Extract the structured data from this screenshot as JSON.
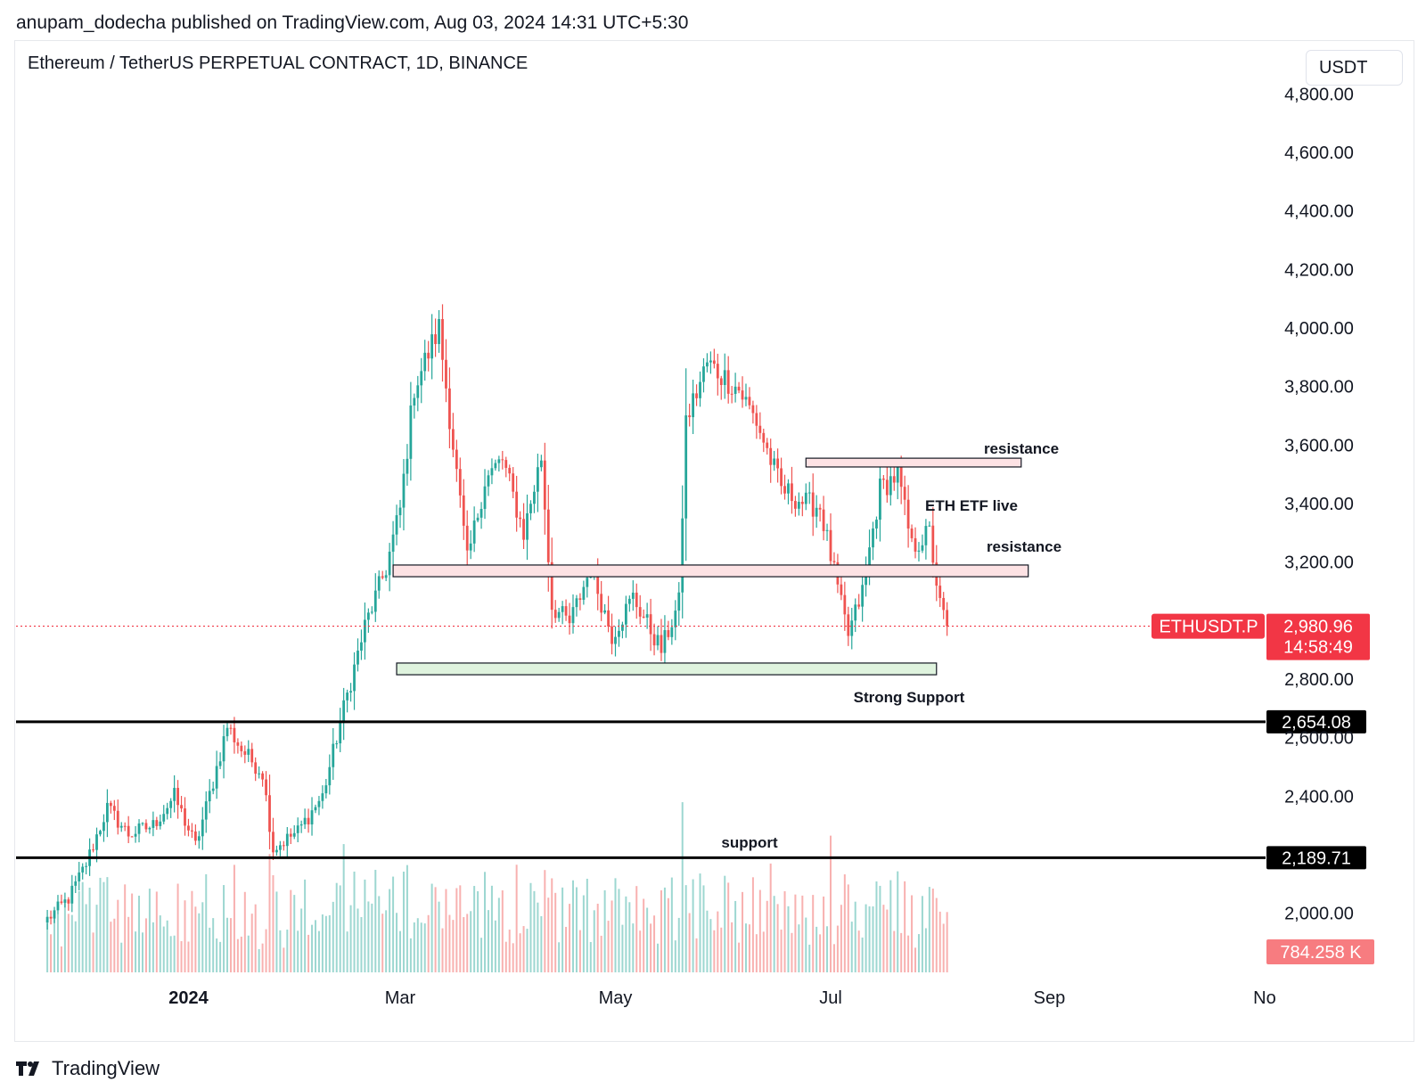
{
  "header": {
    "published": "anupam_dodecha published on TradingView.com, Aug 03, 2024 14:31 UTC+5:30",
    "symbol_title": "Ethereum / TetherUS PERPETUAL CONTRACT, 1D, BINANCE",
    "currency": "USDT"
  },
  "footer": {
    "brand": "TradingView"
  },
  "colors": {
    "up": "#26a69a",
    "down": "#ef5350",
    "price_tag": "#f23645",
    "support_line": "#000000",
    "resistance_fill": "#fde2e4",
    "support_fill": "#dff3de"
  },
  "chart_data": {
    "type": "candlestick",
    "title": "Ethereum / TetherUS PERPETUAL CONTRACT, 1D, BINANCE",
    "x_ticks": [
      "2024",
      "Mar",
      "May",
      "Jul",
      "Sep",
      "No"
    ],
    "y_ticks": [
      "4,800.00",
      "4,600.00",
      "4,400.00",
      "4,200.00",
      "4,000.00",
      "3,800.00",
      "3,600.00",
      "3,400.00",
      "3,200.00",
      "2,800.00",
      "2,600.00",
      "2,400.00",
      "2,000.00"
    ],
    "ylim": [
      1900,
      4830
    ],
    "last_price": {
      "label": "ETHUSDT.P",
      "value": "2,980.96",
      "countdown": "14:58:49",
      "price": 2980.96
    },
    "horizontal_lines": [
      {
        "value": 2654.08,
        "label": "2,654.08"
      },
      {
        "value": 2189.71,
        "label": "2,189.71"
      }
    ],
    "volume_label": "784.258 K",
    "zones": [
      {
        "kind": "resistance",
        "low": 3525,
        "high": 3555,
        "from": "2024-06-24",
        "to": "2024-08-24"
      },
      {
        "kind": "resistance",
        "low": 3150,
        "high": 3190,
        "from": "2024-02-28",
        "to": "2024-08-26"
      },
      {
        "kind": "support",
        "low": 2815,
        "high": 2855,
        "from": "2024-02-29",
        "to": "2024-07-31"
      }
    ],
    "annotations": {
      "resistance_upper": "resistance",
      "eth_etf": "ETH ETF live",
      "resistance_lower": "resistance",
      "strong_support": "Strong Support",
      "support": "support"
    },
    "keypoints": [
      {
        "date": "2023-11-22",
        "price": 1980
      },
      {
        "date": "2023-11-28",
        "price": 2050
      },
      {
        "date": "2023-12-03",
        "price": 2170
      },
      {
        "date": "2023-12-09",
        "price": 2360
      },
      {
        "date": "2023-12-15",
        "price": 2270
      },
      {
        "date": "2023-12-22",
        "price": 2300
      },
      {
        "date": "2023-12-28",
        "price": 2400
      },
      {
        "date": "2024-01-03",
        "price": 2230
      },
      {
        "date": "2024-01-08",
        "price": 2450
      },
      {
        "date": "2024-01-12",
        "price": 2640
      },
      {
        "date": "2024-01-16",
        "price": 2560
      },
      {
        "date": "2024-01-22",
        "price": 2480
      },
      {
        "date": "2024-01-25",
        "price": 2220
      },
      {
        "date": "2024-02-01",
        "price": 2280
      },
      {
        "date": "2024-02-08",
        "price": 2400
      },
      {
        "date": "2024-02-14",
        "price": 2700
      },
      {
        "date": "2024-02-20",
        "price": 2980
      },
      {
        "date": "2024-02-26",
        "price": 3180
      },
      {
        "date": "2024-03-01",
        "price": 3380
      },
      {
        "date": "2024-03-05",
        "price": 3800
      },
      {
        "date": "2024-03-12",
        "price": 4000
      },
      {
        "date": "2024-03-16",
        "price": 3600
      },
      {
        "date": "2024-03-20",
        "price": 3200
      },
      {
        "date": "2024-03-25",
        "price": 3480
      },
      {
        "date": "2024-03-30",
        "price": 3550
      },
      {
        "date": "2024-04-05",
        "price": 3300
      },
      {
        "date": "2024-04-10",
        "price": 3560
      },
      {
        "date": "2024-04-13",
        "price": 3050
      },
      {
        "date": "2024-04-18",
        "price": 2990
      },
      {
        "date": "2024-04-24",
        "price": 3180
      },
      {
        "date": "2024-04-30",
        "price": 2950
      },
      {
        "date": "2024-05-06",
        "price": 3080
      },
      {
        "date": "2024-05-14",
        "price": 2900
      },
      {
        "date": "2024-05-19",
        "price": 3060
      },
      {
        "date": "2024-05-21",
        "price": 3680
      },
      {
        "date": "2024-05-27",
        "price": 3880
      },
      {
        "date": "2024-06-05",
        "price": 3790
      },
      {
        "date": "2024-06-10",
        "price": 3680
      },
      {
        "date": "2024-06-17",
        "price": 3450
      },
      {
        "date": "2024-06-24",
        "price": 3400
      },
      {
        "date": "2024-06-28",
        "price": 3390
      },
      {
        "date": "2024-07-04",
        "price": 3050
      },
      {
        "date": "2024-07-06",
        "price": 2950
      },
      {
        "date": "2024-07-10",
        "price": 3100
      },
      {
        "date": "2024-07-15",
        "price": 3450
      },
      {
        "date": "2024-07-20",
        "price": 3500
      },
      {
        "date": "2024-07-24",
        "price": 3250
      },
      {
        "date": "2024-07-29",
        "price": 3300
      },
      {
        "date": "2024-08-01",
        "price": 3050
      },
      {
        "date": "2024-08-03",
        "price": 2981
      }
    ]
  }
}
